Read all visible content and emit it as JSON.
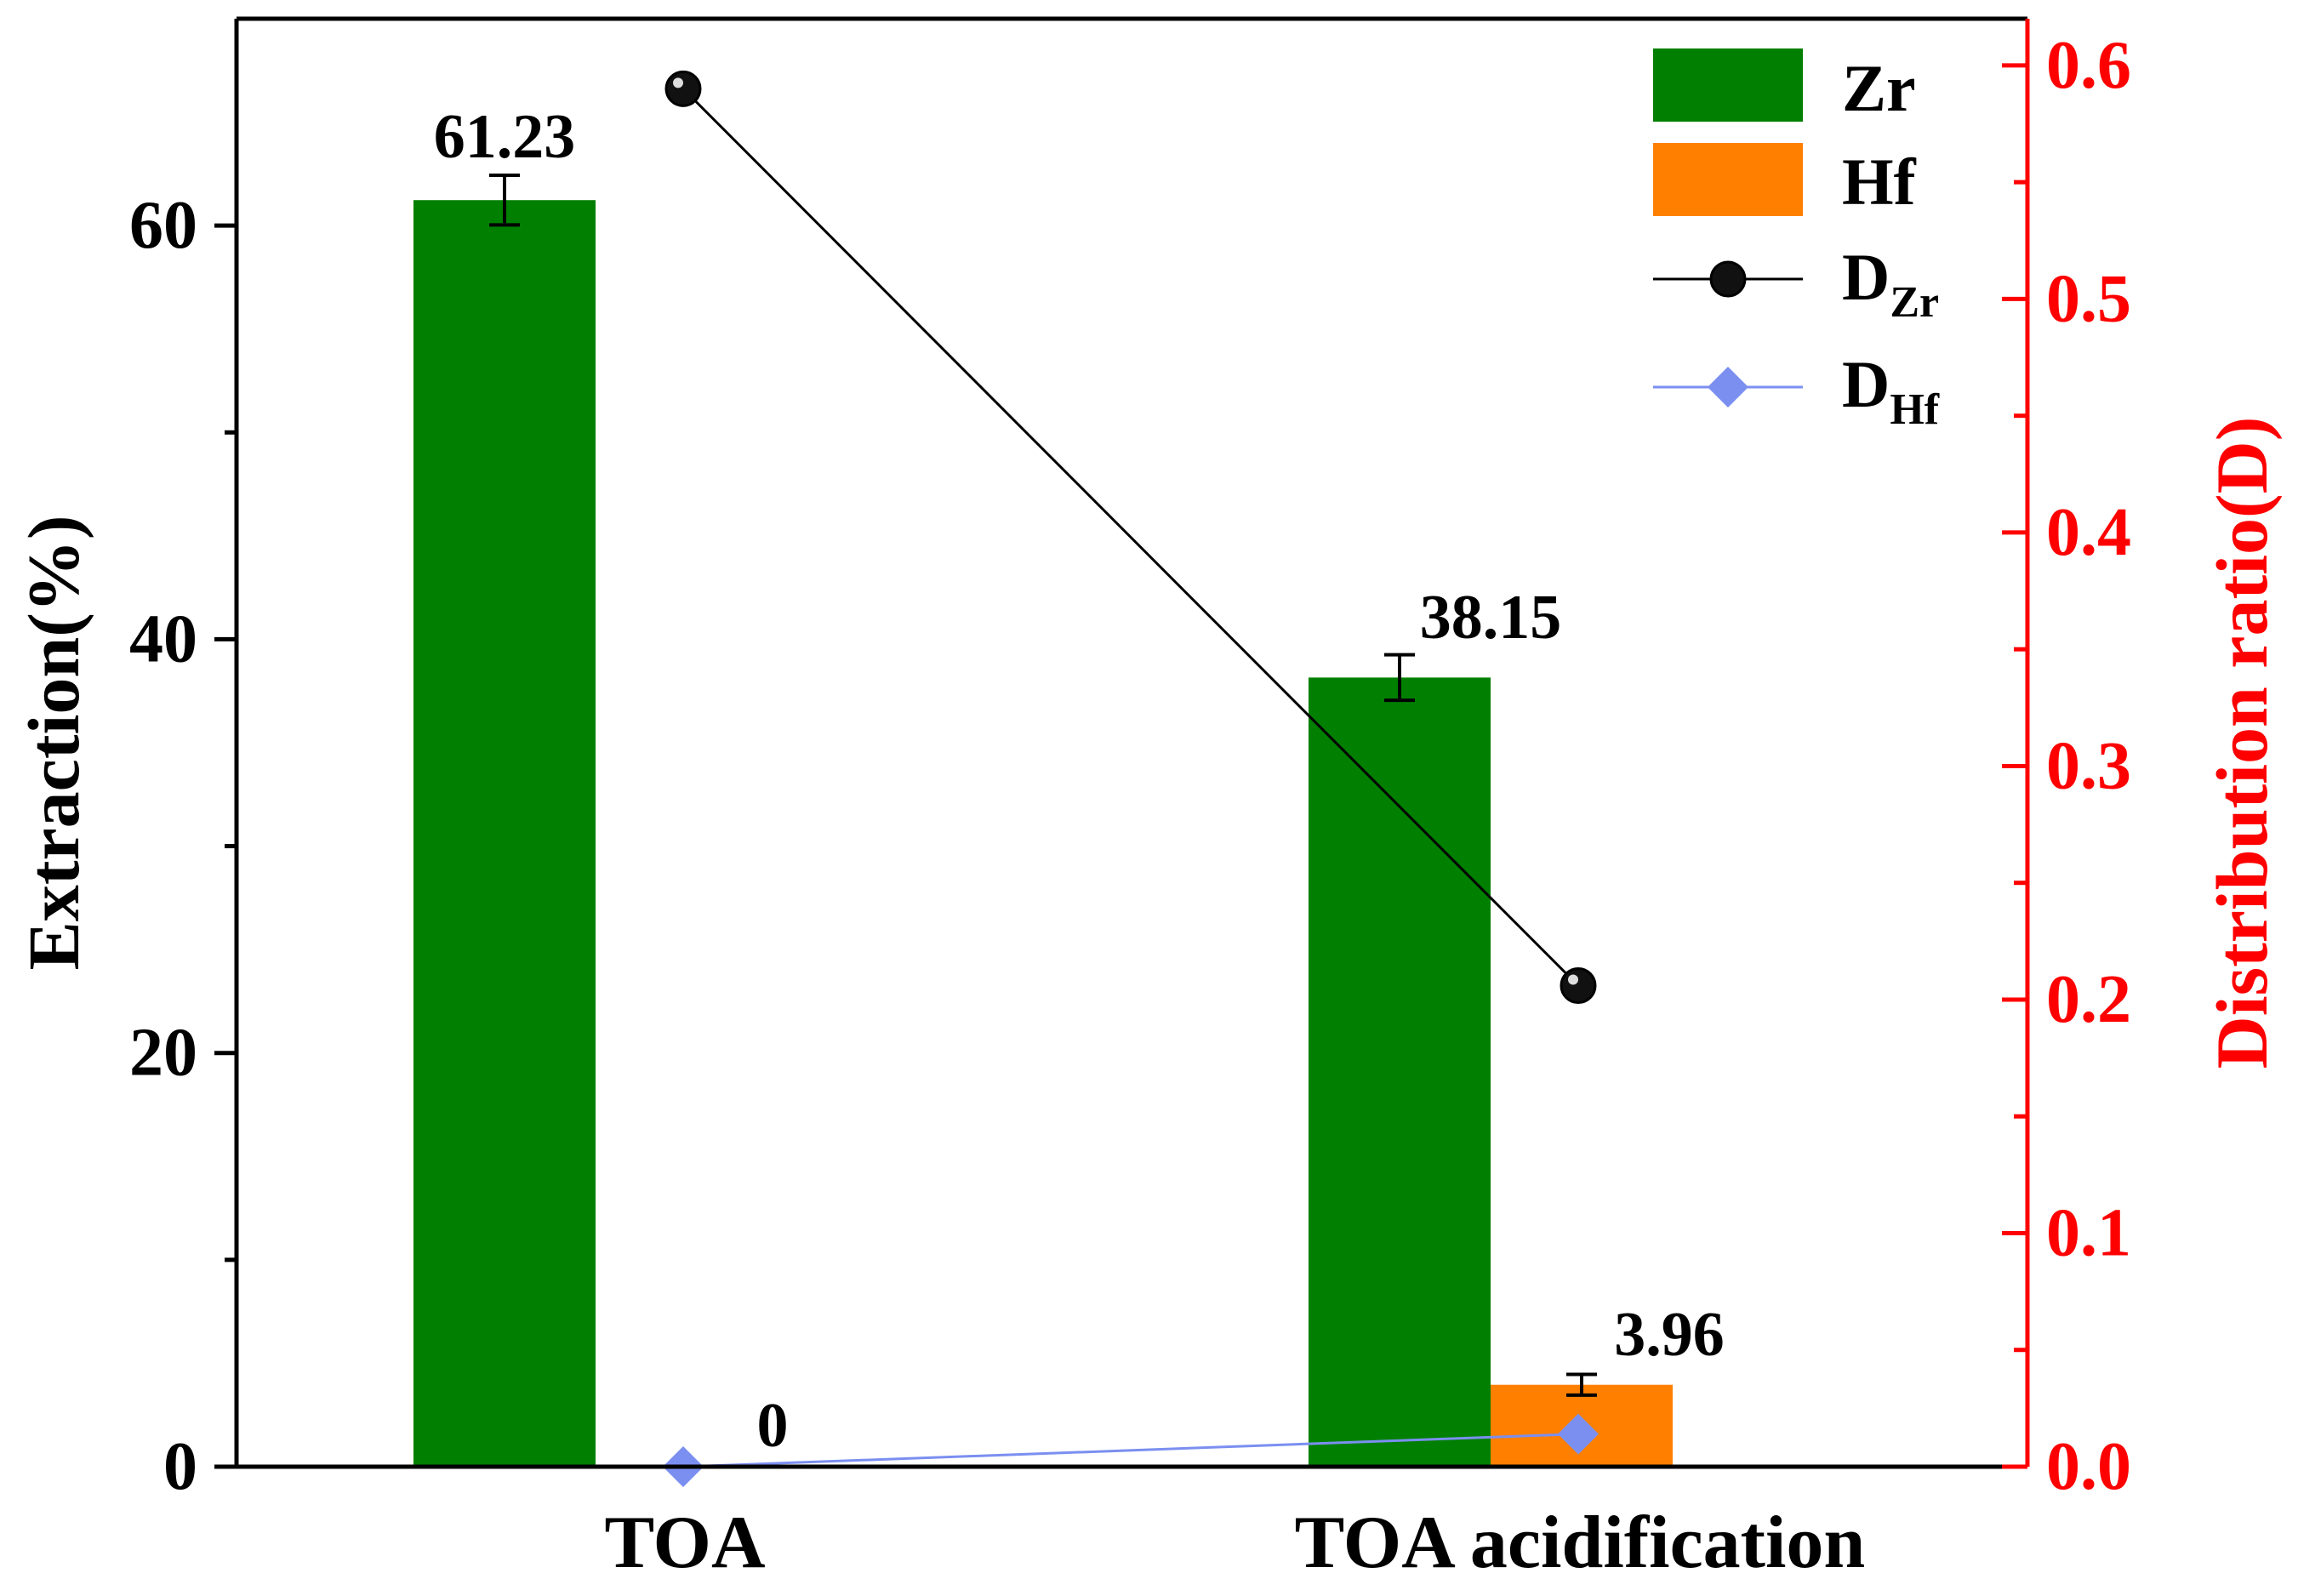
{
  "chart_data": {
    "type": "bar",
    "categories": [
      "TOA",
      "TOA acidification"
    ],
    "series": [
      {
        "name": "Zr",
        "values": [
          61.23,
          38.15
        ],
        "errors": [
          1.2,
          1.1
        ],
        "color": "#007f00"
      },
      {
        "name": "Hf",
        "values": [
          0,
          3.96
        ],
        "errors": [
          0,
          0.5
        ],
        "color": "#ff8000"
      }
    ],
    "line_series": [
      {
        "name": "D",
        "subscript": "Zr",
        "values": [
          0.59,
          0.206
        ],
        "color": "#000000",
        "marker": "circle",
        "axis": "right"
      },
      {
        "name": "D",
        "subscript": "Hf",
        "values": [
          0.0,
          0.014
        ],
        "color": "#7b8ff0",
        "marker": "diamond",
        "axis": "right"
      }
    ],
    "data_labels": [
      "61.23",
      "38.15",
      "3.96",
      "0"
    ],
    "ylabel": "Extraction(%)",
    "y2label": "Distribution ratio(D)",
    "ylim": [
      0,
      70
    ],
    "yticks": [
      "0",
      "20",
      "40",
      "60"
    ],
    "y2lim": [
      0,
      0.62
    ],
    "y2ticks": [
      "0.0",
      "0.1",
      "0.2",
      "0.3",
      "0.4",
      "0.5",
      "0.6"
    ],
    "y2color": "#ff0000",
    "legend_position": "top-right"
  }
}
